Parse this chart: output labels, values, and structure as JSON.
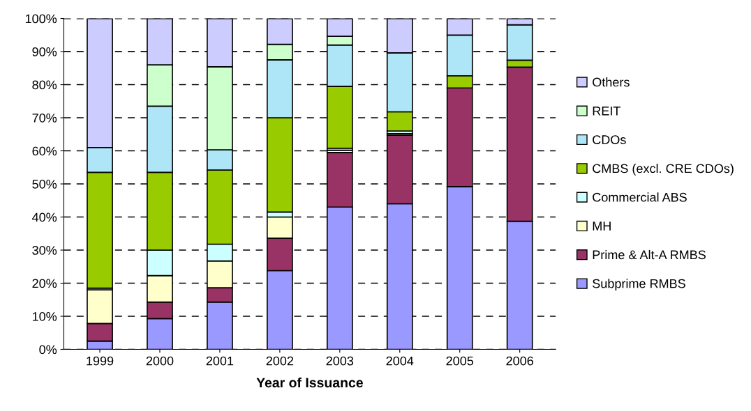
{
  "chart_data": {
    "type": "bar",
    "stacked": true,
    "xlabel": "Year of Issuance",
    "categories": [
      "1999",
      "2000",
      "2001",
      "2002",
      "2003",
      "2004",
      "2005",
      "2006"
    ],
    "series": [
      {
        "name": "Subprime RMBS",
        "color": "#9999ff",
        "values": [
          2.5,
          9.3,
          14.3,
          23.8,
          43,
          44,
          49.2,
          38.7
        ]
      },
      {
        "name": "Prime & Alt-A RMBS",
        "color": "#993366",
        "values": [
          5.3,
          5,
          4.3,
          9.8,
          16.5,
          20.7,
          29.8,
          46.6
        ]
      },
      {
        "name": "MH",
        "color": "#ffffcc",
        "values": [
          10.2,
          8,
          8.1,
          6.4,
          0.7,
          0.5,
          null,
          null
        ]
      },
      {
        "name": "Commercial ABS",
        "color": "#ccffff",
        "values": [
          0.5,
          7.7,
          5.1,
          1.5,
          0.6,
          0.8,
          null,
          null
        ]
      },
      {
        "name": "CMBS (excl. CRE CDOs)",
        "color": "#99cc00",
        "values": [
          35,
          23.5,
          22.4,
          28.5,
          18.7,
          5.8,
          3.7,
          2.1
        ]
      },
      {
        "name": "CDOs",
        "color": "#aee6f7",
        "values": [
          7.5,
          20,
          6.1,
          17.5,
          12.5,
          17.8,
          12.3,
          10.7
        ]
      },
      {
        "name": "REIT",
        "color": "#ccffcc",
        "values": [
          null,
          12.5,
          25.1,
          4.7,
          2.6,
          null,
          null,
          null
        ]
      },
      {
        "name": "Others",
        "color": "#ccccff",
        "values": [
          39,
          14,
          14.6,
          7.8,
          5.4,
          10.4,
          5,
          1.9
        ]
      }
    ],
    "ylim": [
      0,
      100
    ],
    "yticks": [
      {
        "value": 0,
        "label": "0%"
      },
      {
        "value": 10,
        "label": "10%"
      },
      {
        "value": 20,
        "label": "20%"
      },
      {
        "value": 30,
        "label": "30%"
      },
      {
        "value": 40,
        "label": "40%"
      },
      {
        "value": 50,
        "label": "50%"
      },
      {
        "value": 60,
        "label": "60%"
      },
      {
        "value": 70,
        "label": "70%"
      },
      {
        "value": 80,
        "label": "80%"
      },
      {
        "value": 90,
        "label": "90%"
      },
      {
        "value": 100,
        "label": "100%"
      }
    ],
    "grid": "y",
    "legend": "right"
  }
}
